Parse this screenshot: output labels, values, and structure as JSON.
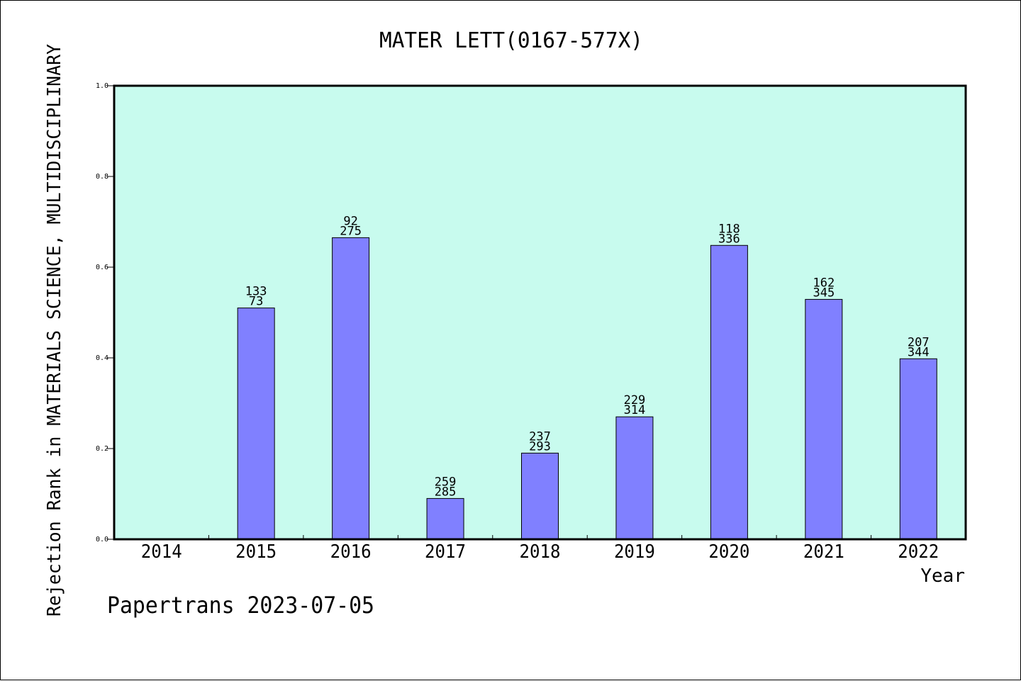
{
  "chart_data": {
    "type": "bar",
    "title": "MATER LETT(0167-577X)",
    "xlabel": "Year",
    "ylabel": "Rejection Rank in MATERIALS SCIENCE, MULTIDISCIPLINARY",
    "ylim": [
      0.0,
      1.0
    ],
    "yticks": [
      "0.0",
      "0.2",
      "0.4",
      "0.6",
      "0.8",
      "1.0"
    ],
    "categories": [
      "2014",
      "2015",
      "2016",
      "2017",
      "2018",
      "2019",
      "2020",
      "2021",
      "2022"
    ],
    "values": [
      null,
      0.51,
      0.665,
      0.09,
      0.19,
      0.27,
      0.648,
      0.529,
      0.398
    ],
    "label_top": [
      "",
      "133",
      "92",
      "259",
      "237",
      "229",
      "118",
      "162",
      "207"
    ],
    "label_bottom": [
      "",
      "73",
      "275",
      "285",
      "293",
      "314",
      "336",
      "345",
      "344"
    ],
    "grid": false,
    "colors": {
      "plot_background": "#c8fbee",
      "bar_fill": "#8080ff",
      "bar_stroke": "#000000"
    }
  },
  "footer": {
    "credit": "Papertrans 2023-07-05"
  }
}
